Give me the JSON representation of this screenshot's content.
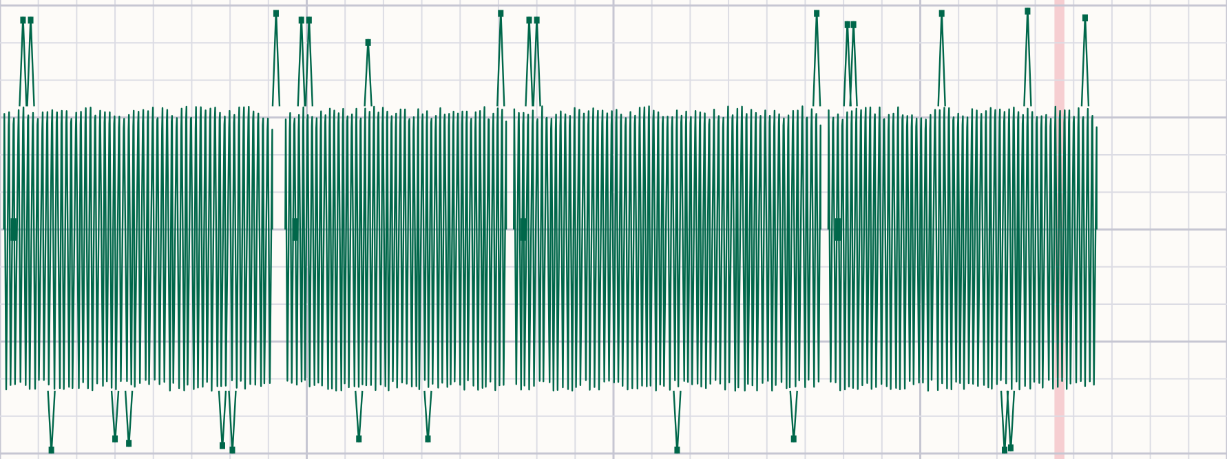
{
  "chart_data": {
    "type": "line",
    "title": "",
    "xlabel": "",
    "ylabel": "",
    "xlim": [
      0,
      16
    ],
    "ylim": [
      -1,
      1
    ],
    "grid": true,
    "major_grid_divisions_x": 4,
    "legend": "none",
    "colors": {
      "background": "#fdfbf8",
      "grid_minor": "#dcdce4",
      "grid_major": "#c6c6d2",
      "trace": "#00674a",
      "highlight": "#f5c6ca"
    },
    "highlight_band_x": [
      13.75,
      13.88
    ],
    "segments": [
      {
        "name": "",
        "x_range": [
          0.05,
          3.55
        ],
        "baseline_y": 0,
        "fast_band": [
          -0.72,
          0.55
        ],
        "cycles": 56,
        "spikes": [
          {
            "x": 0.3,
            "y": 0.95
          },
          {
            "x": 0.4,
            "y": 0.95
          },
          {
            "x": 0.67,
            "y": -1.0
          },
          {
            "x": 1.5,
            "y": -0.95
          },
          {
            "x": 1.68,
            "y": -0.97
          },
          {
            "x": 2.9,
            "y": -0.98
          },
          {
            "x": 3.03,
            "y": -1.0
          },
          {
            "x": 3.6,
            "y": 0.98
          }
        ]
      },
      {
        "name": "",
        "x_range": [
          3.72,
          6.6
        ],
        "baseline_y": 0,
        "fast_band": [
          -0.72,
          0.55
        ],
        "cycles": 50,
        "spikes": [
          {
            "x": 3.93,
            "y": 0.95
          },
          {
            "x": 4.03,
            "y": 0.95
          },
          {
            "x": 4.8,
            "y": 0.85
          },
          {
            "x": 4.68,
            "y": -0.95
          },
          {
            "x": 5.58,
            "y": -0.95
          },
          {
            "x": 6.53,
            "y": 0.98
          }
        ]
      },
      {
        "name": "",
        "x_range": [
          6.7,
          10.7
        ],
        "baseline_y": 0,
        "fast_band": [
          -0.72,
          0.55
        ],
        "cycles": 66,
        "spikes": [
          {
            "x": 6.9,
            "y": 0.95
          },
          {
            "x": 7.0,
            "y": 0.95
          },
          {
            "x": 8.83,
            "y": -1.0
          },
          {
            "x": 10.35,
            "y": -0.95
          },
          {
            "x": 10.65,
            "y": 0.98
          }
        ]
      },
      {
        "name": "",
        "x_range": [
          10.8,
          14.3
        ],
        "baseline_y": 0,
        "fast_band": [
          -0.72,
          0.55
        ],
        "cycles": 58,
        "spikes": [
          {
            "x": 11.05,
            "y": 0.93
          },
          {
            "x": 11.13,
            "y": 0.93
          },
          {
            "x": 12.28,
            "y": 0.98
          },
          {
            "x": 13.1,
            "y": -1.0
          },
          {
            "x": 13.4,
            "y": 0.99
          },
          {
            "x": 13.18,
            "y": -0.99
          },
          {
            "x": 14.15,
            "y": 0.96
          }
        ]
      }
    ]
  }
}
